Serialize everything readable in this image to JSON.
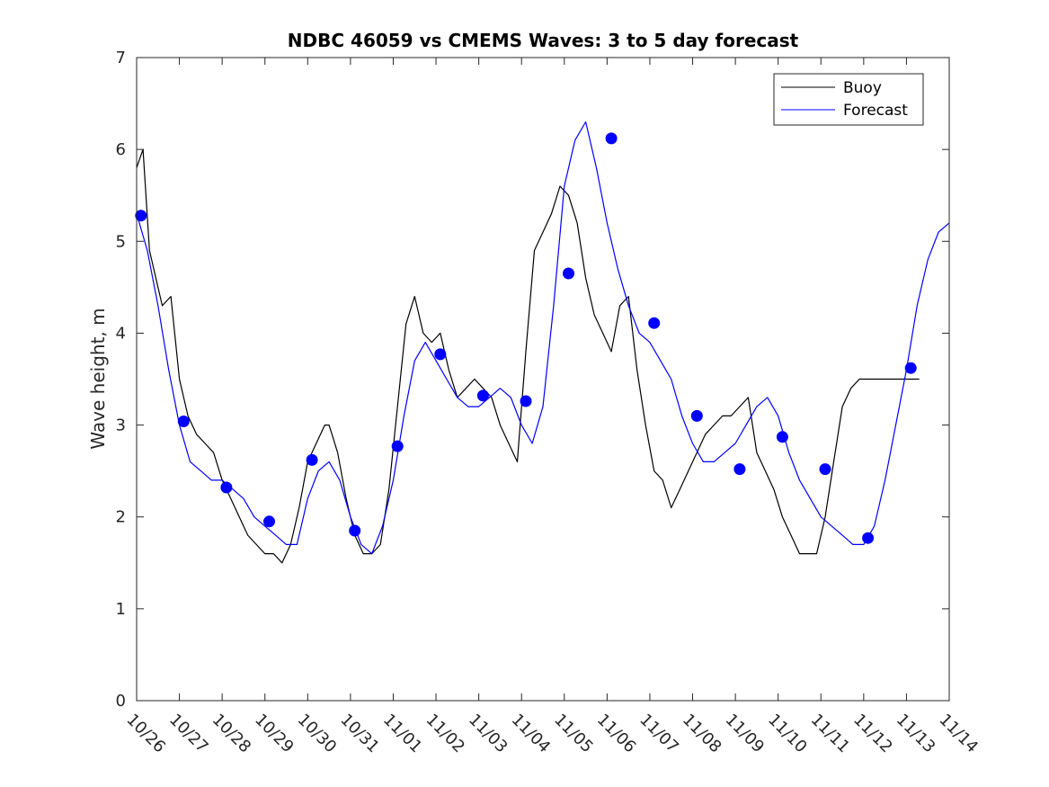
{
  "chart_data": {
    "type": "line",
    "title": "NDBC 46059 vs CMEMS Waves: 3 to 5 day forecast",
    "xlabel": "",
    "ylabel": "Wave height, m",
    "xlim": [
      0,
      19
    ],
    "ylim": [
      0,
      7
    ],
    "x_ticks": [
      0,
      1,
      2,
      3,
      4,
      5,
      6,
      7,
      8,
      9,
      10,
      11,
      12,
      13,
      14,
      15,
      16,
      17,
      18,
      19
    ],
    "x_tick_labels": [
      "10/26",
      "10/27",
      "10/28",
      "10/29",
      "10/30",
      "10/31",
      "11/01",
      "11/02",
      "11/03",
      "11/04",
      "11/05",
      "11/06",
      "11/07",
      "11/08",
      "11/09",
      "11/10",
      "11/11",
      "11/12",
      "11/13",
      "11/14"
    ],
    "y_ticks": [
      0,
      1,
      2,
      3,
      4,
      5,
      6,
      7
    ],
    "y_tick_labels": [
      "0",
      "1",
      "2",
      "3",
      "4",
      "5",
      "6",
      "7"
    ],
    "grid": false,
    "legend": {
      "position": "top-right",
      "entries": [
        "Buoy",
        "Forecast"
      ]
    },
    "colors": {
      "buoy": "#000000",
      "forecast": "#0000ff",
      "markers": "#0000ff",
      "axes": "#262626"
    },
    "series": [
      {
        "name": "Buoy",
        "style": "line",
        "x": [
          0.0,
          0.15,
          0.3,
          0.45,
          0.6,
          0.8,
          1.0,
          1.2,
          1.4,
          1.6,
          1.8,
          2.0,
          2.2,
          2.4,
          2.6,
          2.8,
          3.0,
          3.2,
          3.4,
          3.6,
          3.8,
          4.0,
          4.2,
          4.4,
          4.5,
          4.7,
          4.9,
          5.1,
          5.3,
          5.5,
          5.7,
          5.9,
          6.1,
          6.3,
          6.5,
          6.7,
          6.9,
          7.1,
          7.3,
          7.5,
          7.7,
          7.9,
          8.1,
          8.3,
          8.5,
          8.7,
          8.9,
          9.1,
          9.3,
          9.5,
          9.7,
          9.9,
          10.1,
          10.3,
          10.5,
          10.7,
          10.9,
          11.1,
          11.3,
          11.5,
          11.7,
          11.9,
          12.1,
          12.3,
          12.5,
          12.7,
          12.9,
          13.1,
          13.3,
          13.5,
          13.7,
          13.9,
          14.1,
          14.3,
          14.5,
          14.7,
          14.9,
          15.1,
          15.3,
          15.5,
          15.7,
          15.9,
          16.1,
          16.3,
          16.5,
          16.7,
          16.9,
          17.1,
          17.3,
          17.5,
          17.7,
          17.9,
          18.1,
          18.3
        ],
        "values": [
          5.8,
          6.0,
          4.9,
          4.6,
          4.3,
          4.4,
          3.5,
          3.1,
          2.9,
          2.8,
          2.7,
          2.4,
          2.2,
          2.0,
          1.8,
          1.7,
          1.6,
          1.6,
          1.5,
          1.7,
          2.1,
          2.6,
          2.8,
          3.0,
          3.0,
          2.7,
          2.2,
          1.8,
          1.6,
          1.6,
          1.7,
          2.3,
          3.2,
          4.1,
          4.4,
          4.0,
          3.9,
          4.0,
          3.6,
          3.3,
          3.4,
          3.5,
          3.4,
          3.3,
          3.0,
          2.8,
          2.6,
          3.8,
          4.9,
          5.1,
          5.3,
          5.6,
          5.5,
          5.2,
          4.6,
          4.2,
          4.0,
          3.8,
          4.3,
          4.4,
          3.6,
          3.0,
          2.5,
          2.4,
          2.1,
          2.3,
          2.5,
          2.7,
          2.9,
          3.0,
          3.1,
          3.1,
          3.2,
          3.3,
          2.7,
          2.5,
          2.3,
          2.0,
          1.8,
          1.6,
          1.6,
          1.6,
          2.0,
          2.6,
          3.2,
          3.4,
          3.5,
          3.5,
          3.5,
          3.5,
          3.5,
          3.5,
          3.5,
          3.5
        ]
      },
      {
        "name": "Forecast",
        "style": "line",
        "x": [
          0.0,
          0.25,
          0.5,
          0.75,
          1.0,
          1.25,
          1.5,
          1.75,
          2.0,
          2.25,
          2.5,
          2.75,
          3.0,
          3.25,
          3.5,
          3.75,
          4.0,
          4.25,
          4.5,
          4.75,
          5.0,
          5.25,
          5.5,
          5.75,
          6.0,
          6.25,
          6.5,
          6.75,
          7.0,
          7.25,
          7.5,
          7.75,
          8.0,
          8.25,
          8.5,
          8.75,
          9.0,
          9.25,
          9.5,
          9.75,
          10.0,
          10.25,
          10.5,
          10.75,
          11.0,
          11.25,
          11.5,
          11.75,
          12.0,
          12.25,
          12.5,
          12.75,
          13.0,
          13.25,
          13.5,
          13.75,
          14.0,
          14.25,
          14.5,
          14.75,
          15.0,
          15.25,
          15.5,
          15.75,
          16.0,
          16.25,
          16.5,
          16.75,
          17.0,
          17.25,
          17.5,
          17.75,
          18.0,
          18.25,
          18.5,
          18.75,
          19.0
        ],
        "values": [
          5.3,
          4.9,
          4.3,
          3.6,
          3.0,
          2.6,
          2.5,
          2.4,
          2.4,
          2.3,
          2.2,
          2.0,
          1.9,
          1.8,
          1.7,
          1.7,
          2.2,
          2.5,
          2.6,
          2.4,
          2.0,
          1.7,
          1.6,
          1.9,
          2.4,
          3.1,
          3.7,
          3.9,
          3.7,
          3.5,
          3.3,
          3.2,
          3.2,
          3.3,
          3.4,
          3.3,
          3.0,
          2.8,
          3.2,
          4.3,
          5.6,
          6.1,
          6.3,
          5.8,
          5.2,
          4.7,
          4.3,
          4.0,
          3.9,
          3.7,
          3.5,
          3.1,
          2.8,
          2.6,
          2.6,
          2.7,
          2.8,
          3.0,
          3.2,
          3.3,
          3.1,
          2.7,
          2.4,
          2.2,
          2.0,
          1.9,
          1.8,
          1.7,
          1.7,
          1.9,
          2.4,
          3.0,
          3.6,
          4.3,
          4.8,
          5.1,
          5.2
        ]
      },
      {
        "name": "Forecast markers",
        "style": "markers",
        "x": [
          0.1,
          1.1,
          2.1,
          3.1,
          4.1,
          5.1,
          6.1,
          7.1,
          8.1,
          9.1,
          10.1,
          11.1,
          12.1,
          13.1,
          14.1,
          15.1,
          16.1,
          17.1,
          18.1
        ],
        "values": [
          5.28,
          3.04,
          2.32,
          1.95,
          2.62,
          1.85,
          2.77,
          3.77,
          3.32,
          3.26,
          4.65,
          6.12,
          4.11,
          3.1,
          2.52,
          2.87,
          2.52,
          1.77,
          3.62
        ]
      }
    ]
  }
}
